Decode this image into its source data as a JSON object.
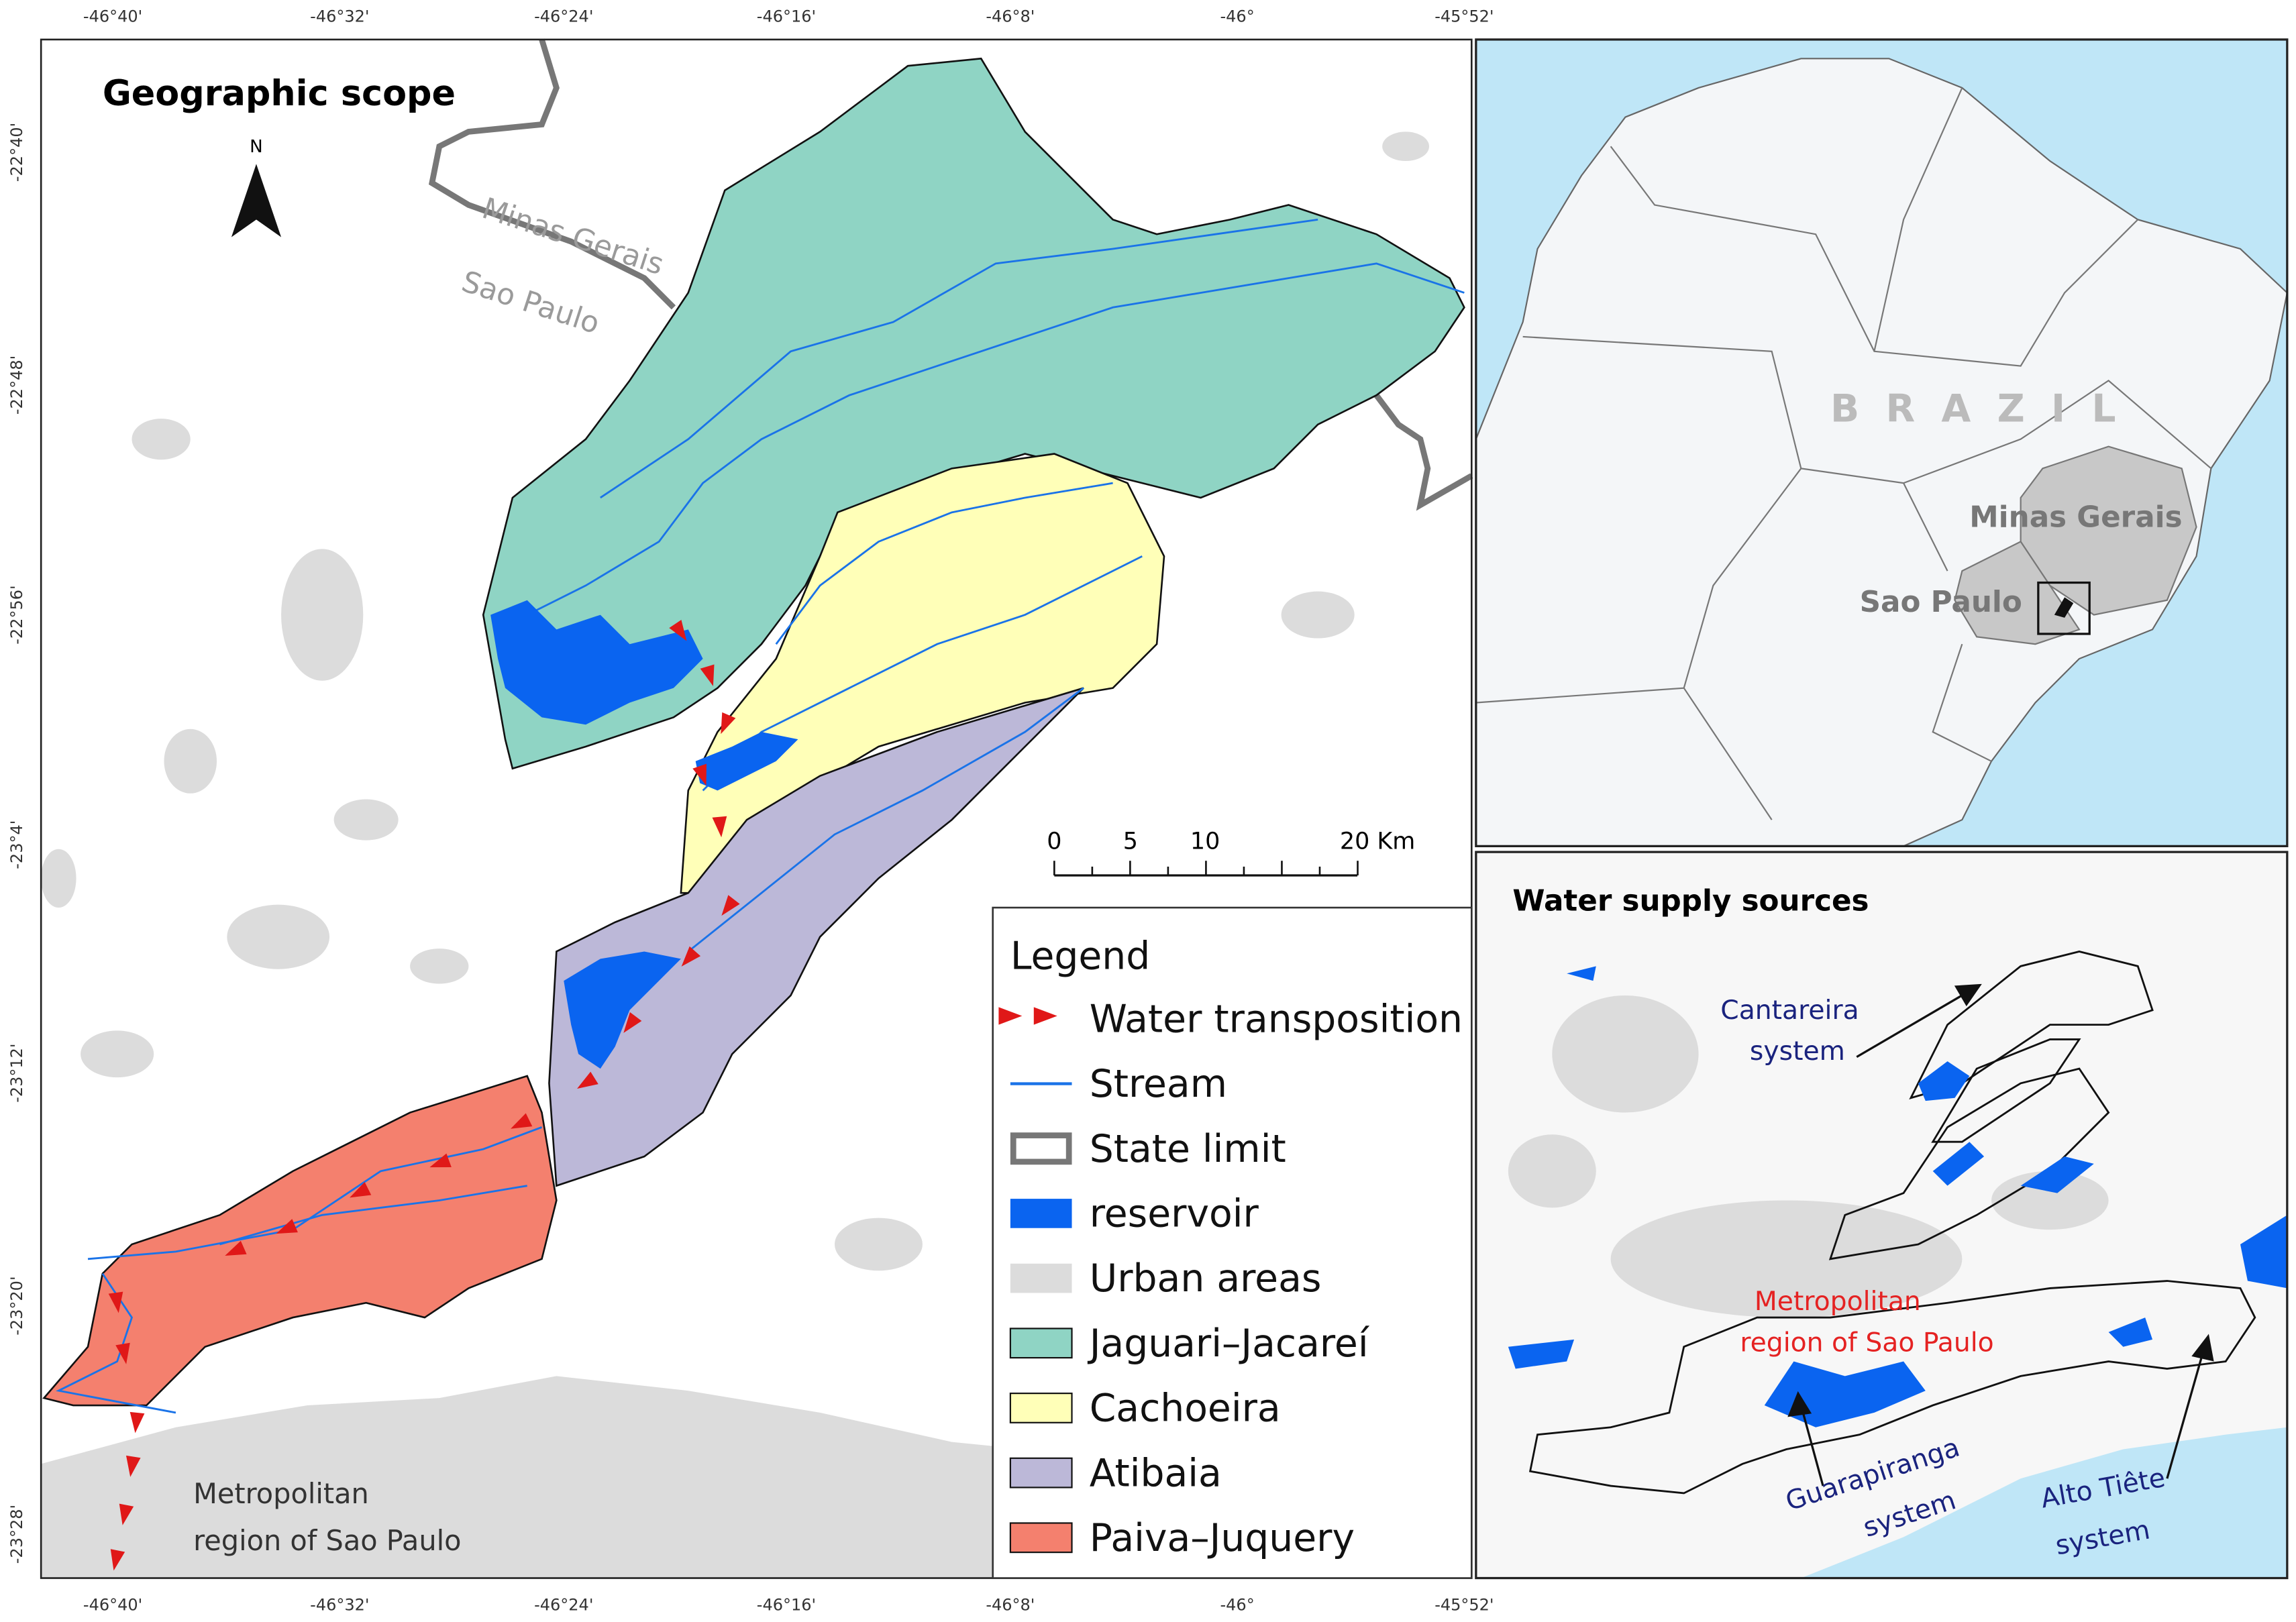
{
  "main_map": {
    "title": "Geographic scope",
    "north": "N",
    "top_ticks": [
      "-46°40'",
      "-46°32'",
      "-46°24'",
      "-46°16'",
      "-46°8'",
      "-46°",
      "-45°52'"
    ],
    "bottom_ticks": [
      "-46°40'",
      "-46°32'",
      "-46°24'",
      "-46°16'",
      "-46°8'",
      "-46°",
      "-45°52'"
    ],
    "left_ticks": [
      "-22°40'",
      "-22°48'",
      "-22°56'",
      "-23°4'",
      "-23°12'",
      "-23°20'",
      "-23°28'"
    ],
    "state_labels": [
      "Minas Gerais",
      "Sao Paulo"
    ],
    "metro_label": [
      "Metropolitan",
      "region of Sao Paulo"
    ]
  },
  "scale_bar": {
    "labels": [
      "0",
      "5",
      "10",
      "20 Km"
    ]
  },
  "legend": {
    "title": "Legend",
    "items": [
      "Water transposition",
      "Stream",
      "State limit",
      "reservoir",
      "Urban areas",
      "Jaguari–Jacareí",
      "Cachoeira",
      "Atibaia",
      "Paiva–Juquery"
    ]
  },
  "inset_brazil": {
    "country": "BRAZIL",
    "states": [
      "Minas Gerais",
      "Sao Paulo"
    ]
  },
  "inset_water": {
    "title": "Water supply sources",
    "cantareira": [
      "Cantareira",
      "system"
    ],
    "metro": [
      "Metropolitan",
      "region of Sao Paulo"
    ],
    "guarapiranga": [
      "Guarapiranga",
      "system"
    ],
    "alto_tiete": [
      "Alto Tiête",
      "system"
    ]
  }
}
